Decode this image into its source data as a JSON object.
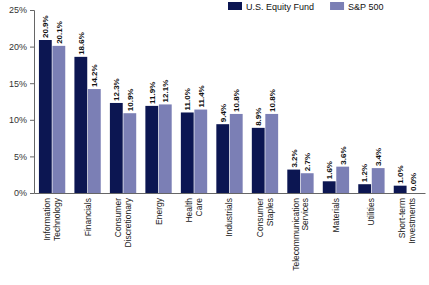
{
  "chart_data": {
    "type": "bar",
    "categories": [
      "Information Technology",
      "Financials",
      "Consumer Discretionary",
      "Energy",
      "Health Care",
      "Industrials",
      "Consumer Staples",
      "Telecommunication Services",
      "Materials",
      "Utilities",
      "Short-term Investments"
    ],
    "series": [
      {
        "name": "U.S. Equity Fund",
        "color": "#0c1652",
        "values": [
          20.9,
          18.6,
          12.3,
          11.9,
          11.0,
          9.4,
          8.9,
          3.2,
          1.6,
          1.2,
          1.0
        ],
        "value_labels": [
          "20.9%",
          "18.6%",
          "12.3%",
          "11.9%",
          "11.0%",
          "9.4%",
          "8.9%",
          "3.2%",
          "1.6%",
          "1.2%",
          "1.0%"
        ]
      },
      {
        "name": "S&P 500",
        "color": "#7b7fb5",
        "values": [
          20.1,
          14.2,
          10.9,
          12.1,
          11.4,
          10.8,
          10.8,
          2.7,
          3.6,
          3.4,
          0.0
        ],
        "value_labels": [
          "20.1%",
          "14.2%",
          "10.9%",
          "12.1%",
          "11.4%",
          "10.8%",
          "10.8%",
          "2.7%",
          "3.6%",
          "3.4%",
          "0.0%"
        ]
      }
    ],
    "ylim": [
      0,
      25
    ],
    "yticks": [
      {
        "value": 0,
        "label": "0%"
      },
      {
        "value": 5,
        "label": "5%"
      },
      {
        "value": 10,
        "label": "10%"
      },
      {
        "value": 15,
        "label": "15%"
      },
      {
        "value": 20,
        "label": "20%"
      },
      {
        "value": 25,
        "label": "25%"
      }
    ],
    "grid": false,
    "legend": "top",
    "data_labels": true
  }
}
